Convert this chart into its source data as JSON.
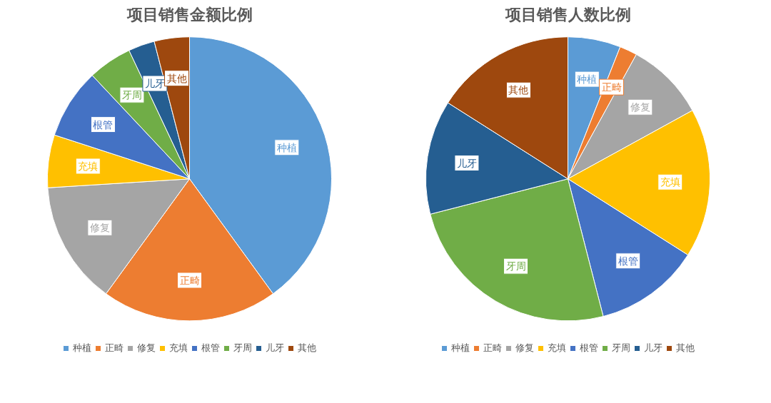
{
  "chart_data": [
    {
      "type": "pie",
      "title": "项目销售金额比例",
      "categories": [
        "种植",
        "正畸",
        "修复",
        "充填",
        "根管",
        "牙周",
        "儿牙",
        "其他"
      ],
      "values": [
        40,
        20,
        14,
        6,
        8,
        5,
        3,
        4
      ],
      "colors": [
        "#5b9bd5",
        "#ed7d31",
        "#a5a5a5",
        "#ffc000",
        "#4472c4",
        "#70ad47",
        "#255e91",
        "#9e480e"
      ],
      "legend": "bottom"
    },
    {
      "type": "pie",
      "title": "项目销售人数比例",
      "categories": [
        "种植",
        "正畸",
        "修复",
        "充填",
        "根管",
        "牙周",
        "儿牙",
        "其他"
      ],
      "values": [
        6,
        2,
        9,
        17,
        12,
        25,
        13,
        16
      ],
      "colors": [
        "#5b9bd5",
        "#ed7d31",
        "#a5a5a5",
        "#ffc000",
        "#4472c4",
        "#70ad47",
        "#255e91",
        "#9e480e"
      ],
      "legend": "bottom"
    }
  ]
}
